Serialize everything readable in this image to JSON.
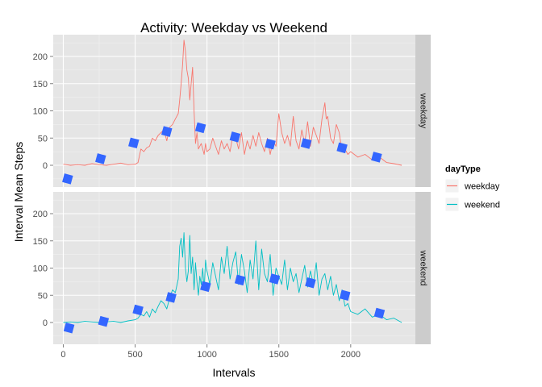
{
  "chart_data": {
    "type": "line",
    "title": "Activity: Weekday vs Weekend",
    "xlabel": "Intervals",
    "ylabel": "Interval Mean Steps",
    "xlim": [
      -70,
      2450
    ],
    "ylim": [
      -40,
      240
    ],
    "x_ticks": [
      0,
      500,
      1000,
      1500,
      2000
    ],
    "y_ticks": [
      0,
      50,
      100,
      150,
      200
    ],
    "grid": true,
    "legend": {
      "title": "dayType",
      "position": "right",
      "entries": [
        "weekday",
        "weekend"
      ]
    },
    "facets": [
      "weekday",
      "weekend"
    ],
    "colors": {
      "weekday": "#F8766D",
      "weekend": "#00BFC4",
      "marker": "#3366FF"
    },
    "series": [
      {
        "name": "weekday",
        "panel": "weekday",
        "x": [
          0,
          50,
          100,
          150,
          200,
          250,
          300,
          350,
          400,
          450,
          500,
          520,
          540,
          560,
          580,
          600,
          620,
          640,
          660,
          680,
          700,
          720,
          740,
          760,
          780,
          800,
          810,
          820,
          830,
          840,
          850,
          860,
          870,
          880,
          890,
          900,
          910,
          920,
          930,
          940,
          950,
          960,
          970,
          980,
          990,
          1000,
          1020,
          1040,
          1060,
          1080,
          1100,
          1120,
          1140,
          1160,
          1180,
          1200,
          1220,
          1240,
          1260,
          1280,
          1300,
          1320,
          1340,
          1360,
          1380,
          1400,
          1420,
          1440,
          1460,
          1480,
          1500,
          1520,
          1540,
          1560,
          1580,
          1600,
          1620,
          1640,
          1660,
          1680,
          1700,
          1720,
          1740,
          1760,
          1780,
          1800,
          1820,
          1830,
          1840,
          1850,
          1860,
          1880,
          1900,
          1920,
          1940,
          1960,
          1980,
          2000,
          2050,
          2100,
          2150,
          2200,
          2250,
          2300,
          2355
        ],
        "y": [
          2,
          0,
          1,
          0,
          3,
          1,
          0,
          2,
          4,
          1,
          2,
          5,
          30,
          25,
          32,
          35,
          50,
          45,
          55,
          60,
          65,
          45,
          70,
          75,
          85,
          95,
          120,
          150,
          185,
          230,
          210,
          175,
          160,
          120,
          150,
          180,
          100,
          40,
          60,
          30,
          35,
          40,
          30,
          20,
          40,
          25,
          30,
          50,
          35,
          20,
          45,
          30,
          40,
          25,
          55,
          50,
          30,
          60,
          20,
          45,
          30,
          55,
          35,
          60,
          40,
          25,
          50,
          20,
          45,
          35,
          95,
          60,
          40,
          55,
          35,
          90,
          45,
          30,
          65,
          40,
          80,
          35,
          70,
          55,
          40,
          85,
          115,
          85,
          90,
          70,
          50,
          40,
          75,
          60,
          25,
          30,
          20,
          25,
          15,
          20,
          10,
          15,
          5,
          3,
          0
        ]
      },
      {
        "name": "weekend",
        "panel": "weekend",
        "x": [
          0,
          50,
          100,
          150,
          200,
          250,
          300,
          350,
          400,
          450,
          500,
          520,
          540,
          560,
          580,
          600,
          620,
          640,
          660,
          680,
          700,
          720,
          740,
          760,
          780,
          800,
          810,
          820,
          830,
          840,
          850,
          860,
          870,
          880,
          890,
          900,
          910,
          920,
          930,
          940,
          950,
          960,
          970,
          980,
          990,
          1000,
          1020,
          1040,
          1060,
          1080,
          1100,
          1120,
          1140,
          1160,
          1180,
          1200,
          1220,
          1240,
          1260,
          1280,
          1300,
          1320,
          1340,
          1360,
          1380,
          1400,
          1420,
          1440,
          1460,
          1480,
          1500,
          1520,
          1540,
          1560,
          1580,
          1600,
          1620,
          1640,
          1660,
          1680,
          1700,
          1720,
          1740,
          1760,
          1780,
          1800,
          1820,
          1840,
          1860,
          1880,
          1900,
          1920,
          1940,
          1960,
          1980,
          2000,
          2050,
          2100,
          2150,
          2200,
          2250,
          2300,
          2355
        ],
        "y": [
          0,
          1,
          0,
          2,
          1,
          0,
          1,
          2,
          0,
          3,
          5,
          8,
          15,
          12,
          20,
          10,
          25,
          18,
          30,
          40,
          35,
          25,
          45,
          60,
          55,
          80,
          140,
          155,
          120,
          165,
          100,
          75,
          95,
          160,
          90,
          120,
          60,
          110,
          75,
          50,
          85,
          70,
          100,
          60,
          115,
          95,
          70,
          110,
          85,
          60,
          120,
          90,
          140,
          80,
          110,
          130,
          70,
          125,
          95,
          55,
          115,
          80,
          150,
          60,
          135,
          90,
          75,
          125,
          50,
          100,
          85,
          70,
          115,
          60,
          100,
          75,
          90,
          55,
          80,
          105,
          65,
          95,
          70,
          110,
          50,
          80,
          90,
          60,
          85,
          50,
          70,
          40,
          60,
          30,
          35,
          20,
          15,
          25,
          10,
          15,
          5,
          8,
          0
        ]
      },
      {
        "name": "",
        "type": "scatter",
        "panel": "weekday",
        "x": [
          30,
          260,
          490,
          720,
          955,
          1195,
          1440,
          1690,
          1940,
          2180
        ],
        "y": [
          -25,
          12,
          41,
          62,
          69,
          52,
          39,
          40,
          32,
          15
        ]
      },
      {
        "name": "",
        "type": "scatter",
        "panel": "weekend",
        "x": [
          40,
          280,
          520,
          750,
          990,
          1230,
          1470,
          1720,
          1960,
          2200
        ],
        "y": [
          -10,
          2,
          23,
          46,
          66,
          78,
          80,
          73,
          50,
          17
        ]
      }
    ]
  }
}
